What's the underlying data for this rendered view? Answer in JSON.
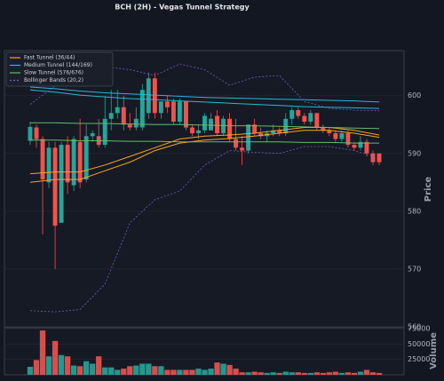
{
  "chart_data": [
    {
      "type": "candlestick",
      "title": "BCH (2H) - Vegas Tunnel Strategy",
      "ylabel": "Price",
      "ylim": [
        560,
        607.8
      ],
      "yticks": [
        560,
        570,
        580,
        590,
        600
      ],
      "grid": true,
      "legend": "upper left",
      "up_color": "#26a69a",
      "down_color": "#ef5350",
      "open": [
        592.2,
        594.5,
        592.5,
        585,
        591,
        578,
        591.5,
        584.5,
        592,
        585.5,
        593,
        593,
        591.5,
        596,
        597,
        598,
        595,
        594.5,
        594.5,
        597,
        603,
        597,
        599,
        599,
        595.5,
        599,
        594.5,
        593.5,
        594,
        594,
        596.5,
        593.5,
        596,
        592.5,
        591,
        590.5,
        595,
        593.5,
        593,
        593.5,
        594,
        593.5,
        596,
        597.5,
        596.5,
        595.5,
        597,
        594.5,
        594,
        593.5,
        592.5,
        593.5,
        591.5,
        591,
        592,
        590,
        590
      ],
      "high": [
        595.5,
        595,
        593,
        592,
        592,
        592,
        593,
        593,
        596,
        595,
        594,
        596,
        600,
        601,
        601,
        600,
        597,
        598,
        602,
        604,
        604,
        599,
        600,
        599.5,
        599.5,
        599,
        595,
        595,
        597,
        597,
        597.5,
        596.5,
        597,
        596,
        593,
        595,
        596,
        594.5,
        594,
        595,
        594.5,
        597,
        598,
        598,
        597,
        597.5,
        597,
        595,
        594.5,
        594,
        594,
        594,
        592,
        593,
        592.5,
        590.5,
        590
      ],
      "low": [
        591.5,
        591,
        576,
        584,
        570,
        578,
        583,
        583.5,
        584,
        585,
        592,
        591,
        591,
        594,
        596,
        594,
        594,
        594,
        594,
        596,
        596,
        596,
        597,
        595,
        595,
        594,
        593,
        592.5,
        593.5,
        594,
        593,
        593,
        592,
        590.5,
        588,
        590,
        593,
        592.5,
        592,
        593,
        593,
        593,
        595,
        596,
        595,
        595,
        594,
        593.5,
        593,
        592,
        592,
        591,
        590.5,
        590.5,
        589.5,
        588,
        588
      ],
      "close": [
        594.6,
        592.5,
        585.5,
        591,
        577.5,
        591.5,
        585,
        592.5,
        585,
        593,
        593.5,
        591.5,
        596,
        597,
        598,
        595,
        594.5,
        596,
        601,
        603,
        597,
        599,
        598,
        595.5,
        599,
        594.5,
        593.5,
        594,
        596.5,
        596,
        593.5,
        596,
        592.5,
        591,
        590.5,
        595,
        593.5,
        593,
        593.5,
        594,
        593.5,
        596,
        597.5,
        596.5,
        595.5,
        597,
        594.5,
        594,
        593.5,
        592.5,
        593.5,
        591.5,
        591,
        592,
        590,
        588.5,
        588.5
      ],
      "lines": [
        {
          "name": "Fast Tunnel (36/44)",
          "color": "#f5a623",
          "dashed": false,
          "x": [
            0,
            4,
            8,
            12,
            16,
            20,
            24,
            28,
            32,
            36,
            40,
            44,
            48,
            52,
            56
          ],
          "values": [
            586.5,
            586.8,
            586.8,
            588,
            589.5,
            591,
            592.5,
            593,
            593.2,
            593.5,
            594,
            594.5,
            594.5,
            594,
            593.2
          ],
          "values2": [
            585,
            585.5,
            585.5,
            587,
            588.5,
            590.5,
            591.8,
            592.3,
            592.6,
            593,
            593.5,
            594,
            594,
            593.5,
            592.8
          ]
        },
        {
          "name": "Medium Tunnel (144/169)",
          "color": "#29b6d8",
          "dashed": false,
          "x": [
            0,
            4,
            8,
            12,
            16,
            20,
            24,
            28,
            32,
            36,
            40,
            44,
            48,
            52,
            56
          ],
          "values": [
            601.5,
            601.2,
            600.8,
            600.5,
            600.3,
            600.1,
            599.9,
            599.7,
            599.6,
            599.5,
            599.4,
            599.3,
            599.2,
            599.1,
            598.9
          ],
          "values2": [
            601,
            600.6,
            600.1,
            599.8,
            599.5,
            599.3,
            599.1,
            598.9,
            598.7,
            598.5,
            598.3,
            598.1,
            598,
            597.9,
            597.8
          ]
        },
        {
          "name": "Slow Tunnel (576/676)",
          "color": "#66bb6a",
          "dashed": false,
          "x": [
            0,
            4,
            8,
            12,
            16,
            20,
            24,
            28,
            32,
            36,
            40,
            44,
            48,
            52,
            56
          ],
          "values": [
            595.3,
            595.3,
            595.2,
            595.2,
            595.1,
            595,
            595,
            594.9,
            594.8,
            594.8,
            594.7,
            594.6,
            594.5,
            594.4,
            594.3
          ],
          "values2": [
            592.3,
            592.3,
            592.2,
            592.2,
            592.1,
            592.1,
            592,
            592,
            592,
            592,
            592,
            591.9,
            591.9,
            591.8,
            591.8
          ]
        },
        {
          "name": "Bollinger Bands (20,2)",
          "color": "#7e57c2",
          "dashed": true,
          "x": [
            0,
            4,
            8,
            12,
            16,
            20,
            24,
            28,
            32,
            36,
            40,
            44,
            48,
            52,
            56
          ],
          "values": [
            598.5,
            601.7,
            602.5,
            605,
            604.5,
            603.5,
            605.5,
            604.5,
            601.8,
            603.2,
            603.5,
            599,
            597.8,
            597.5,
            597.4
          ],
          "values2": [
            562.8,
            562.6,
            563,
            567.4,
            578,
            582,
            583.5,
            588,
            590.5,
            590.2,
            590,
            591.2,
            591.2,
            590.5,
            589.2
          ]
        }
      ]
    },
    {
      "type": "bar",
      "ylabel": "Volume",
      "ylim": [
        0,
        76500
      ],
      "yticks": [
        25000,
        50000,
        75000
      ],
      "grid": true,
      "values": [
        13000,
        24000,
        72000,
        30000,
        55000,
        32000,
        30000,
        15000,
        14000,
        22000,
        18000,
        30000,
        12000,
        12000,
        8000,
        10000,
        14000,
        15000,
        18000,
        18000,
        14000,
        14000,
        8000,
        8000,
        8000,
        8000,
        8000,
        10000,
        8000,
        10000,
        20000,
        18000,
        16000,
        10000,
        4000,
        4000,
        5000,
        4000,
        3000,
        4000,
        3000,
        5000,
        4000,
        4000,
        3000,
        3000,
        4000,
        3000,
        4000,
        5000,
        3000,
        4000,
        3000,
        5000,
        8000,
        4000,
        3000
      ]
    }
  ]
}
